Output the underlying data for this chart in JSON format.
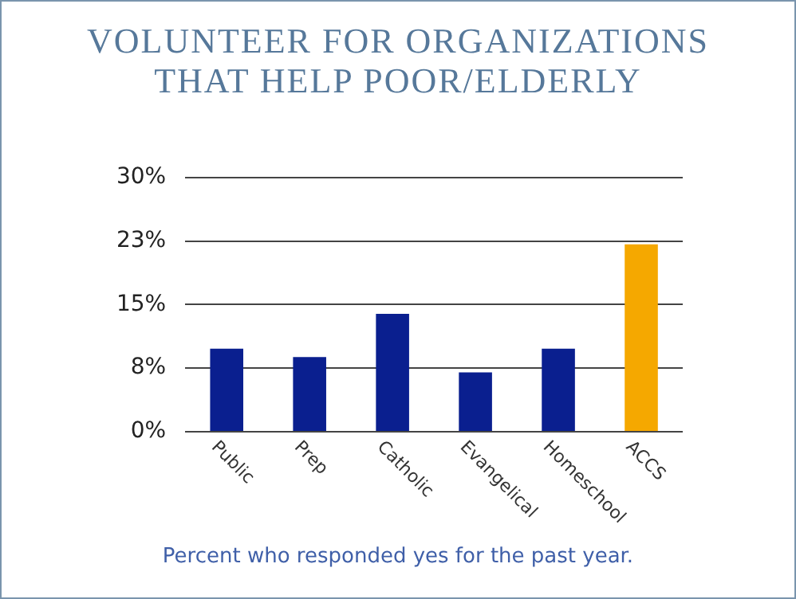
{
  "chart_data": {
    "type": "bar",
    "title": "VOLUNTEER FOR ORGANIZATIONS THAT HELP POOR/ELDERLY",
    "categories": [
      "Public",
      "Prep",
      "Catholic",
      "Evangelical",
      "Homeschool",
      "ACCS"
    ],
    "values": [
      9.8,
      8.8,
      13.9,
      7.0,
      9.8,
      22.1
    ],
    "colors": [
      "#0a1f8f",
      "#0a1f8f",
      "#0a1f8f",
      "#0a1f8f",
      "#0a1f8f",
      "#f5a800"
    ],
    "ylim": [
      0,
      30
    ],
    "yticks": [
      {
        "value": 0,
        "label": "0%"
      },
      {
        "value": 7.5,
        "label": "8%"
      },
      {
        "value": 15,
        "label": "15%"
      },
      {
        "value": 22.5,
        "label": "23%"
      },
      {
        "value": 30,
        "label": "30%"
      }
    ],
    "grid": "y",
    "annotations": [
      "Percent who responded yes for the past year."
    ]
  }
}
